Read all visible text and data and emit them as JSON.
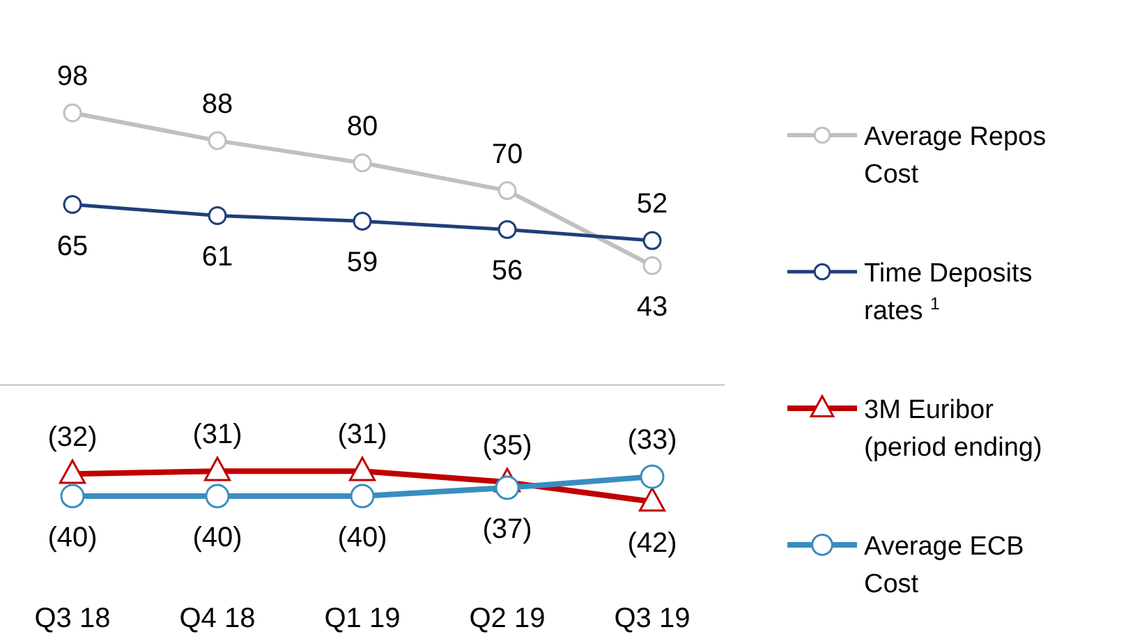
{
  "chart_data": {
    "type": "line",
    "categories": [
      "Q3 18",
      "Q4 18",
      "Q1 19",
      "Q2 19",
      "Q3 19"
    ],
    "series": [
      {
        "name": "Average Repos Cost",
        "color": "#c0c0c0",
        "marker": "circle",
        "values": [
          98,
          88,
          80,
          70,
          43
        ],
        "value_labels": [
          "98",
          "88",
          "80",
          "70",
          "43"
        ]
      },
      {
        "name": "Time Deposits rates $^{1}$",
        "color": "#1f3f7a",
        "marker": "circle",
        "values": [
          65,
          61,
          59,
          56,
          52
        ],
        "value_labels": [
          "65",
          "61",
          "59",
          "56",
          "52"
        ]
      },
      {
        "name": "3M Euribor (period ending)",
        "color": "#c00000",
        "marker": "triangle",
        "values": [
          -32,
          -31,
          -31,
          -35,
          -42
        ],
        "value_labels": [
          "(32)",
          "(31)",
          "(31)",
          "(35)",
          "(42)"
        ]
      },
      {
        "name": "Average ECB Cost",
        "color": "#3a8dbf",
        "marker": "circle",
        "values": [
          -40,
          -40,
          -40,
          -37,
          -33
        ],
        "value_labels": [
          "(40)",
          "(40)",
          "(40)",
          "(37)",
          "(33)"
        ]
      }
    ],
    "ref_lines": [
      {
        "axis": "y",
        "value": 0,
        "color": "#bfbfbf"
      }
    ],
    "legend": "right"
  }
}
